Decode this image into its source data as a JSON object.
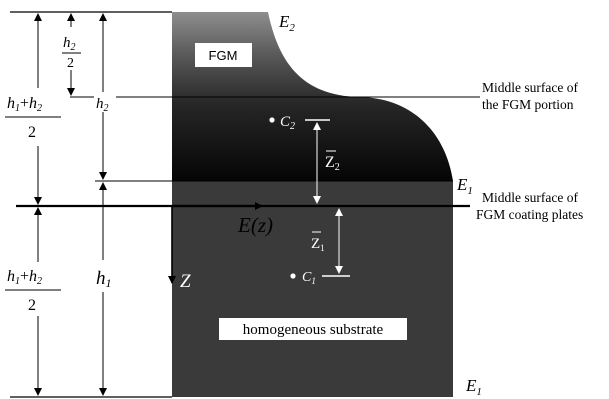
{
  "labels": {
    "E2": "E",
    "E2_sub": "2",
    "E1_top": "E",
    "E1_top_sub": "1",
    "E1_bottom": "E",
    "E1_bottom_sub": "1",
    "fgm": "FGM",
    "substrate": "homogeneous substrate",
    "middle_fgm_line1": "Middle surface of",
    "middle_fgm_line2": "the FGM portion",
    "middle_coating_line1": "Middle surface of",
    "middle_coating_line2": "FGM coating plates",
    "Ez": "E(z)",
    "Z": "Z",
    "C2": "C",
    "C2_sub": "2",
    "C1": "C",
    "C1_sub": "1",
    "Zbar2": "Z",
    "Zbar2_sub": "2",
    "Zbar1": "Z",
    "Zbar1_sub": "1",
    "h2_half_num": "h",
    "h2_half_num_sub": "2",
    "h2_half_den": "2",
    "h2": "h",
    "h2_sub": "2",
    "h1": "h",
    "h1_sub": "1",
    "sum_top_h1": "h",
    "sum_top_h1_sub": "1",
    "sum_top_plus": "+",
    "sum_top_h2": "h",
    "sum_top_h2_sub": "2",
    "sum_top_den": "2",
    "sum_bot_h1": "h",
    "sum_bot_h1_sub": "1",
    "sum_bot_plus": "+",
    "sum_bot_h2": "h",
    "sum_bot_h2_sub": "2",
    "sum_bot_den": "2"
  }
}
